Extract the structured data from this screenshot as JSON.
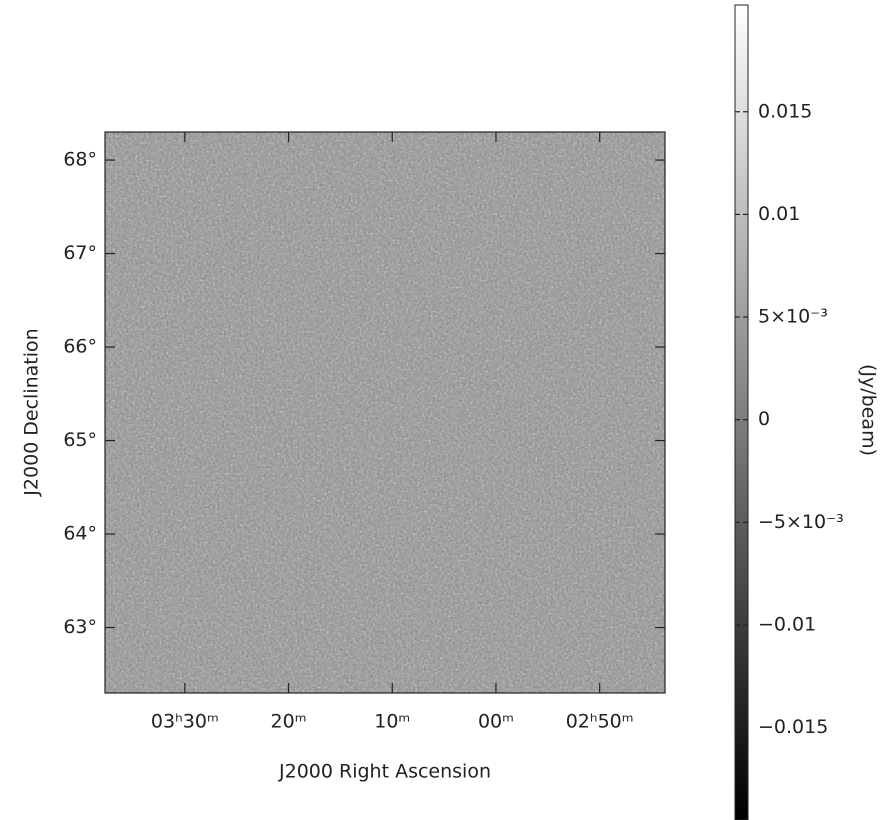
{
  "chart_data": {
    "type": "image",
    "xlabel": "J2000 Right Ascension",
    "ylabel": "J2000 Declination",
    "colorbar_label": "(Jy/beam)",
    "xlim": [
      217.7,
      163.7
    ],
    "xticks": [
      {
        "value": 210,
        "label": "03ʰ30ᵐ"
      },
      {
        "value": 200,
        "label": "20ᵐ"
      },
      {
        "value": 190,
        "label": "10ᵐ"
      },
      {
        "value": 180,
        "label": "00ᵐ"
      },
      {
        "value": 170,
        "label": "02ʰ50ᵐ"
      }
    ],
    "ylim": [
      62.3,
      68.3
    ],
    "yticks": [
      {
        "value": 63,
        "label": "63°"
      },
      {
        "value": 64,
        "label": "64°"
      },
      {
        "value": 65,
        "label": "65°"
      },
      {
        "value": 66,
        "label": "66°"
      },
      {
        "value": 67,
        "label": "67°"
      },
      {
        "value": 68,
        "label": "68°"
      }
    ],
    "clim": [
      -0.0195,
      0.0202
    ],
    "cticks": [
      0.015,
      0.01,
      {
        "value": 0.005,
        "label": "5×10⁻³"
      },
      0,
      {
        "value": -0.005,
        "label": "−5×10⁻³"
      },
      {
        "value": -0.01,
        "label": "−0.01"
      },
      {
        "value": -0.015,
        "label": "−0.015"
      }
    ],
    "colormap": [
      "#000000",
      "#ffffff"
    ]
  }
}
